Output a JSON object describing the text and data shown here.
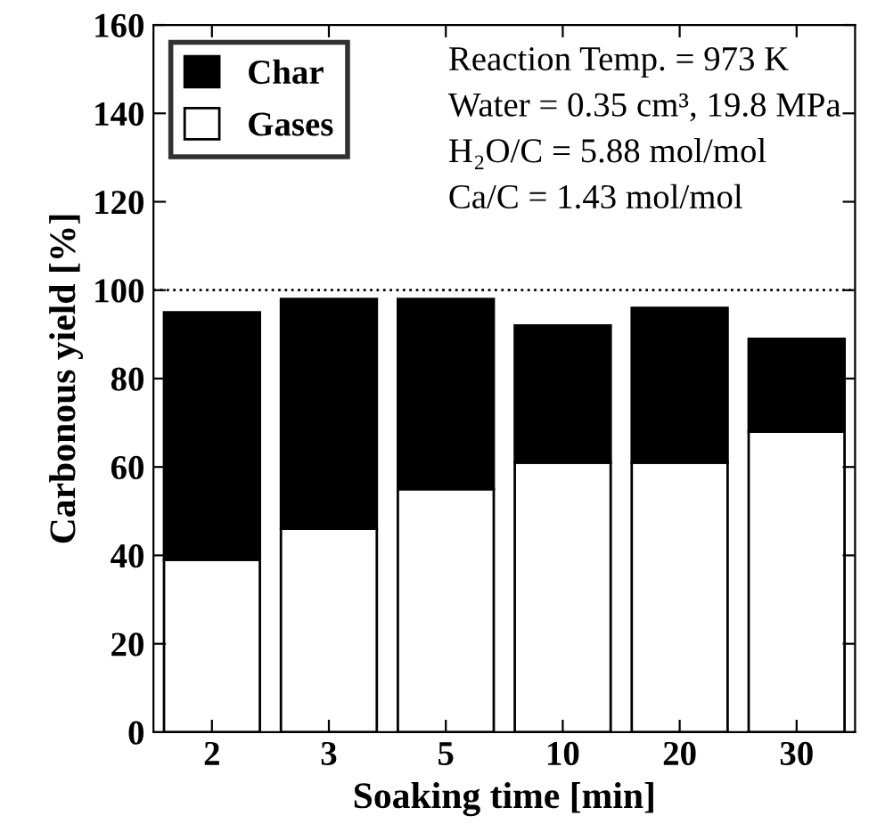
{
  "chart_data": {
    "type": "bar",
    "stacked": true,
    "xlabel": "Soaking time [min]",
    "ylabel": "Carbonous yield [%]",
    "categories": [
      "2",
      "3",
      "5",
      "10",
      "20",
      "30"
    ],
    "series": [
      {
        "name": "Gases",
        "color": "#ffffff",
        "values": [
          39,
          46,
          55,
          61,
          61,
          68
        ]
      },
      {
        "name": "Char",
        "color": "#000000",
        "values": [
          56,
          52,
          43,
          31,
          35,
          21
        ]
      }
    ],
    "ylim": [
      0,
      160
    ],
    "yticks": [
      0,
      20,
      40,
      60,
      80,
      100,
      120,
      140,
      160
    ],
    "grid": false,
    "legend": "top left",
    "ref_lines": [
      {
        "axis": "y",
        "value": 100,
        "line_style": "dotted",
        "color": "#000000"
      }
    ],
    "annotations": [
      "Reaction Temp. = 973 K",
      "Water = 0.35 cm³, 19.8 MPa",
      "H₂O/C = 5.88 mol/mol",
      "Ca/C = 1.43 mol/mol"
    ]
  }
}
